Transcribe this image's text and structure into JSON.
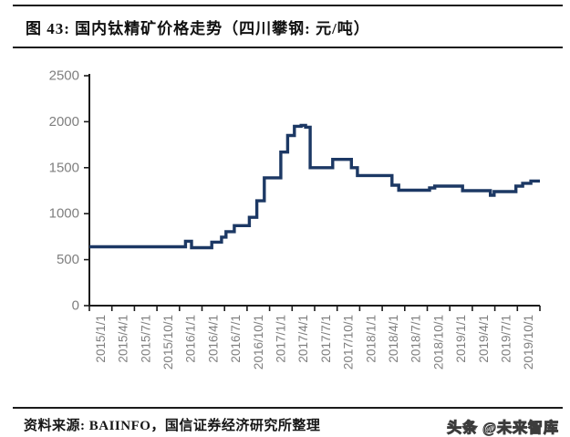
{
  "header": {
    "title": "图 43:  国内钛精矿价格走势（四川攀钢:  元/吨）"
  },
  "footer": {
    "source": "资料来源: BAIINFO，国信证券经济研究所整理",
    "watermark": "头条 @未来智库"
  },
  "chart_data": {
    "type": "line",
    "title": "国内钛精矿价格走势（四川攀钢: 元/吨）",
    "xlabel": "",
    "ylabel": "",
    "ylim": [
      0,
      2500
    ],
    "y_tick_interval": 500,
    "y_tick_labels": [
      "0",
      "500",
      "1000",
      "1500",
      "2000",
      "2500"
    ],
    "x_tick_labels": [
      "2015/1/1",
      "2015/4/1",
      "2015/7/1",
      "2015/10/1",
      "2016/1/1",
      "2016/4/1",
      "2016/7/1",
      "2016/10/1",
      "2017/1/1",
      "2017/4/1",
      "2017/7/1",
      "2017/10/1",
      "2018/1/1",
      "2018/4/1",
      "2018/7/1",
      "2018/10/1",
      "2019/1/1",
      "2019/4/1",
      "2019/7/1",
      "2019/10/1"
    ],
    "x_axis_months_total": 60,
    "months_per_tick": 3,
    "grid": false,
    "legend": "none",
    "line_color": "#1c3864",
    "axis_color": "#1a1a1a",
    "tick_label_color": "#7f7f7f",
    "series": [
      {
        "name": "钛精矿价格（四川攀钢，元/吨）",
        "step": "after",
        "x_unit": "months_since_2015_01",
        "points": [
          [
            0,
            640
          ],
          [
            12.8,
            700
          ],
          [
            13.6,
            630
          ],
          [
            16.3,
            690
          ],
          [
            17.6,
            745
          ],
          [
            18.2,
            805
          ],
          [
            19.3,
            870
          ],
          [
            21.3,
            960
          ],
          [
            22.3,
            1140
          ],
          [
            23.3,
            1390
          ],
          [
            25.5,
            1670
          ],
          [
            26.4,
            1850
          ],
          [
            27.3,
            1950
          ],
          [
            28.2,
            1960
          ],
          [
            28.8,
            1940
          ],
          [
            29.4,
            1500
          ],
          [
            32.4,
            1590
          ],
          [
            34.9,
            1500
          ],
          [
            35.7,
            1415
          ],
          [
            40.3,
            1310
          ],
          [
            41.2,
            1255
          ],
          [
            45.3,
            1280
          ],
          [
            46.0,
            1300
          ],
          [
            49.7,
            1250
          ],
          [
            53.4,
            1200
          ],
          [
            53.9,
            1240
          ],
          [
            56.8,
            1300
          ],
          [
            57.7,
            1330
          ],
          [
            58.8,
            1355
          ],
          [
            60.0,
            1355
          ]
        ]
      }
    ]
  }
}
